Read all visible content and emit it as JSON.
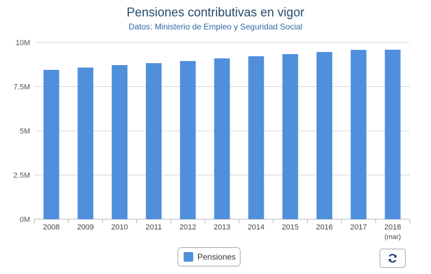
{
  "chart_data": {
    "type": "bar",
    "title": "Pensiones contributivas en vigor",
    "subtitle": "Datos: Ministerio de Empleo y Seguridad Social",
    "categories": [
      "2008",
      "2009",
      "2010",
      "2011",
      "2012",
      "2013",
      "2014",
      "2015",
      "2016",
      "2017",
      "2018"
    ],
    "category_sublabels": [
      "",
      "",
      "",
      "",
      "",
      "",
      "",
      "",
      "",
      "",
      "(mar)"
    ],
    "series": [
      {
        "name": "Pensiones",
        "color": "#4f8fdc",
        "values": [
          8450000,
          8580000,
          8720000,
          8830000,
          8950000,
          9100000,
          9220000,
          9340000,
          9460000,
          9580000,
          9590000
        ]
      }
    ],
    "ylim": [
      0,
      10000000
    ],
    "yticks": [
      0,
      2500000,
      5000000,
      7500000,
      10000000
    ],
    "ytick_labels": [
      "0M",
      "2.5M",
      "5M",
      "7.5M",
      "10M"
    ],
    "xlabel": "",
    "ylabel": "",
    "grid": true,
    "legend_position": "bottom-center"
  },
  "controls": {
    "refresh_icon": "refresh-icon"
  }
}
